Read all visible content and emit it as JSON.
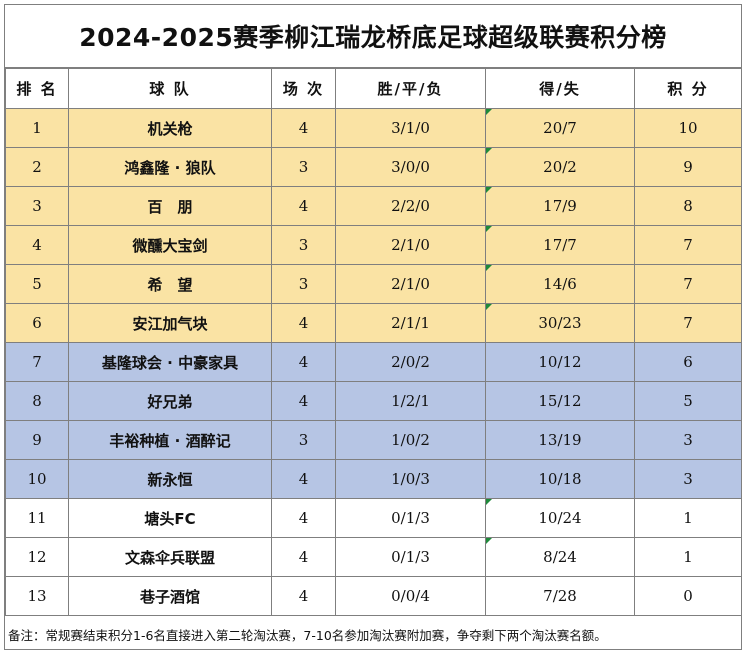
{
  "title": "2024-2025赛季柳江瑞龙桥底足球超级联赛积分榜",
  "headers": [
    "排 名",
    "球 队",
    "场 次",
    "胜/平/负",
    "得/失",
    "积 分"
  ],
  "rows": [
    {
      "rank": "1",
      "team": "机关枪",
      "played": "4",
      "wdl": "3/1/0",
      "goals": "20/7",
      "points": "10",
      "zone": "yellow"
    },
    {
      "rank": "2",
      "team": "鸿鑫隆 · 狼队",
      "played": "3",
      "wdl": "3/0/0",
      "goals": "20/2",
      "points": "9",
      "zone": "yellow"
    },
    {
      "rank": "3",
      "team": "百　朋",
      "played": "4",
      "wdl": "2/2/0",
      "goals": "17/9",
      "points": "8",
      "zone": "yellow"
    },
    {
      "rank": "4",
      "team": "微醺大宝剑",
      "played": "3",
      "wdl": "2/1/0",
      "goals": "17/7",
      "points": "7",
      "zone": "yellow"
    },
    {
      "rank": "5",
      "team": "希　望",
      "played": "3",
      "wdl": "2/1/0",
      "goals": "14/6",
      "points": "7",
      "zone": "yellow"
    },
    {
      "rank": "6",
      "team": "安江加气块",
      "played": "4",
      "wdl": "2/1/1",
      "goals": "30/23",
      "points": "7",
      "zone": "yellow"
    },
    {
      "rank": "7",
      "team": "基隆球会 · 中豪家具",
      "played": "4",
      "wdl": "2/0/2",
      "goals": "10/12",
      "points": "6",
      "zone": "blue"
    },
    {
      "rank": "8",
      "team": "好兄弟",
      "played": "4",
      "wdl": "1/2/1",
      "goals": "15/12",
      "points": "5",
      "zone": "blue"
    },
    {
      "rank": "9",
      "team": "丰裕种植 · 酒醉记",
      "played": "3",
      "wdl": "1/0/2",
      "goals": "13/19",
      "points": "3",
      "zone": "blue"
    },
    {
      "rank": "10",
      "team": "新永恒",
      "played": "4",
      "wdl": "1/0/3",
      "goals": "10/18",
      "points": "3",
      "zone": "blue"
    },
    {
      "rank": "11",
      "team": "塘头FC",
      "played": "4",
      "wdl": "0/1/3",
      "goals": "10/24",
      "points": "1",
      "zone": "white"
    },
    {
      "rank": "12",
      "team": "文森伞兵联盟",
      "played": "4",
      "wdl": "0/1/3",
      "goals": "8/24",
      "points": "1",
      "zone": "white"
    },
    {
      "rank": "13",
      "team": "巷子酒馆",
      "played": "4",
      "wdl": "0/0/4",
      "goals": "7/28",
      "points": "0",
      "zone": "white"
    }
  ],
  "note": "备注：常规赛结束积分1-6名直接进入第二轮淘汰赛，7-10名参加淘汰赛附加赛，争夺剩下两个淘汰赛名额。",
  "colors": {
    "top_zone": "#fae3a4",
    "playoff_zone": "#b6c5e4",
    "rest_zone": "#ffffff",
    "cell_marker": "#1e8a3a"
  }
}
